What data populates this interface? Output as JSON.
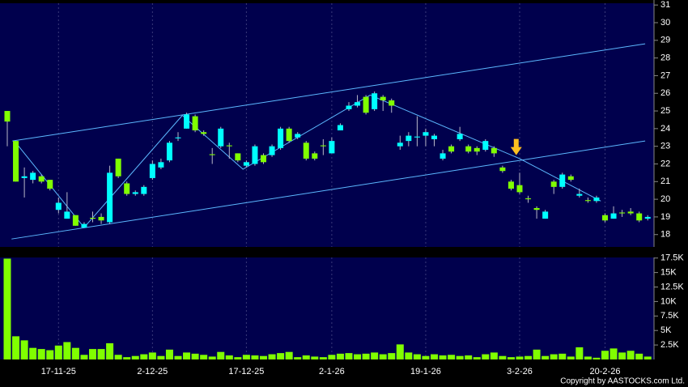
{
  "chart_data": [
    {
      "type": "candlestick",
      "categories": [
        null,
        null,
        null,
        null,
        null,
        null,
        "17-11-25",
        null,
        null,
        null,
        null,
        null,
        null,
        null,
        null,
        null,
        null,
        "2-12-25",
        null,
        null,
        null,
        null,
        null,
        null,
        null,
        null,
        null,
        null,
        "17-12-25",
        null,
        null,
        null,
        null,
        null,
        null,
        null,
        null,
        null,
        "2-1-26",
        null,
        null,
        null,
        null,
        null,
        null,
        null,
        null,
        null,
        null,
        "19-1-26",
        null,
        null,
        null,
        null,
        null,
        null,
        null,
        null,
        null,
        null,
        "3-2-26",
        null,
        null,
        null,
        null,
        null,
        null,
        null,
        null,
        null,
        "20-2-26",
        null,
        null,
        null,
        null,
        null
      ],
      "open": [
        24.4,
        21.0,
        21.3,
        21.5,
        21.0,
        20.6,
        19.8,
        19.3,
        18.5,
        18.6,
        18.9,
        18.8,
        21.5,
        21.3,
        20.3,
        20.4,
        20.7,
        22.0,
        22.1,
        23.2,
        23.5,
        24.8,
        23.9,
        23.7,
        22.5,
        24.0,
        23.0,
        22.2,
        22.1,
        23.0,
        22.1,
        23.0,
        24.0,
        23.3,
        23.7,
        22.3,
        22.3,
        23.0,
        23.3,
        24.2,
        25.3,
        25.5,
        24.9,
        26.0,
        25.6,
        25.3,
        23.2,
        23.6,
        23.55,
        23.8,
        23.6,
        22.6,
        22.7,
        23.7,
        22.7,
        22.7,
        23.3,
        22.6,
        21.6,
        20.6,
        20.4,
        20.0,
        19.4,
        19.3,
        20.7,
        21.4,
        21.1,
        20.3,
        19.9,
        20.1,
        18.8,
        19.2,
        19.2,
        19.2,
        18.8,
        19.0
      ],
      "high": [
        25.0,
        23.3,
        21.8,
        21.6,
        21.4,
        21.1,
        20.1,
        20.4,
        19.1,
        18.7,
        19.3,
        19.2,
        21.9,
        22.3,
        21.0,
        20.5,
        20.8,
        22.2,
        22.3,
        23.3,
        23.8,
        24.9,
        24.8,
        23.9,
        22.9,
        24.1,
        23.2,
        22.6,
        22.2,
        23.1,
        22.6,
        23.1,
        24.1,
        24.1,
        23.8,
        23.3,
        22.7,
        23.4,
        23.5,
        24.3,
        25.5,
        25.9,
        25.9,
        26.1,
        25.9,
        25.7,
        23.6,
        23.8,
        24.7,
        24.0,
        23.7,
        22.8,
        23.1,
        24.1,
        23.1,
        23.0,
        23.4,
        23.0,
        21.9,
        21.1,
        21.5,
        20.2,
        19.6,
        19.4,
        21.1,
        21.5,
        21.4,
        20.6,
        20.1,
        20.2,
        19.2,
        19.6,
        19.4,
        19.5,
        19.3,
        19.1
      ],
      "low": [
        23.0,
        21.0,
        20.1,
        20.9,
        20.9,
        20.5,
        19.2,
        18.9,
        18.5,
        18.4,
        18.7,
        18.6,
        18.6,
        21.2,
        20.2,
        20.2,
        20.2,
        21.1,
        21.7,
        22.1,
        23.3,
        24.0,
        23.8,
        23.6,
        22.0,
        22.9,
        22.3,
        22.1,
        21.8,
        21.9,
        22.0,
        22.4,
        22.8,
        23.2,
        23.4,
        22.2,
        22.2,
        22.5,
        22.6,
        23.9,
        25.0,
        25.2,
        24.8,
        25.0,
        25.0,
        24.9,
        22.8,
        23.0,
        23.0,
        23.0,
        23.0,
        22.2,
        22.6,
        23.3,
        22.6,
        22.5,
        22.7,
        22.4,
        21.5,
        20.5,
        20.3,
        19.8,
        18.9,
        18.9,
        20.3,
        20.6,
        21.0,
        20.1,
        19.8,
        19.8,
        18.7,
        18.9,
        19.0,
        19.1,
        18.7,
        18.8
      ],
      "close": [
        25.0,
        23.3,
        21.2,
        21.1,
        21.3,
        21.1,
        19.4,
        18.9,
        19.1,
        18.4,
        18.95,
        19.0,
        18.7,
        22.3,
        20.9,
        20.3,
        20.3,
        21.2,
        21.8,
        22.2,
        23.45,
        24.0,
        24.7,
        23.8,
        22.55,
        23.0,
        23.05,
        22.6,
        21.9,
        22.0,
        22.5,
        22.5,
        22.9,
        24.0,
        23.5,
        23.2,
        22.6,
        23.05,
        22.6,
        23.9,
        25.1,
        25.3,
        25.8,
        25.1,
        25.8,
        25.6,
        23.0,
        23.3,
        23.5,
        23.6,
        23.4,
        22.3,
        23.0,
        23.4,
        23.0,
        22.9,
        22.8,
        22.9,
        21.8,
        21.0,
        20.8,
        20.05,
        19.5,
        18.9,
        21.0,
        20.7,
        21.3,
        20.2,
        19.95,
        19.9,
        19.1,
        18.9,
        19.25,
        19.3,
        19.2,
        18.9
      ],
      "up_color": "#80ff00",
      "down_color": "#00ffff",
      "wick_color": "#b8b8c8",
      "ylim": [
        17.3,
        31.1
      ],
      "yticks": [
        18,
        19,
        20,
        21,
        22,
        23,
        24,
        25,
        26,
        27,
        28,
        29,
        30,
        31
      ],
      "x_grid": true,
      "trend_lines": [
        {
          "color": "#5cb8ff",
          "points": [
            [
              0.6,
              23.3
            ],
            [
              74.7,
              28.8
            ]
          ]
        },
        {
          "color": "#5cb8ff",
          "points": [
            [
              0.5,
              17.75
            ],
            [
              74.7,
              23.3
            ]
          ]
        },
        {
          "color": "#5cb8ff",
          "points": [
            [
              1,
              23.2
            ],
            [
              9,
              18.4
            ],
            [
              20.5,
              24.75
            ],
            [
              27.6,
              21.7
            ],
            [
              42.5,
              25.9
            ],
            [
              60,
              22.3
            ],
            [
              69.5,
              19.9
            ]
          ]
        }
      ],
      "arrow": {
        "x": 59.6,
        "y": 22.5,
        "color": "#ffc020"
      }
    },
    {
      "type": "bar",
      "values": [
        17400,
        4000,
        3300,
        2000,
        1800,
        1600,
        2400,
        3000,
        2000,
        800,
        1800,
        1800,
        2800,
        800,
        400,
        600,
        900,
        1200,
        600,
        1700,
        600,
        1200,
        1000,
        800,
        500,
        1300,
        700,
        400,
        800,
        700,
        600,
        900,
        1100,
        1300,
        400,
        700,
        500,
        400,
        800,
        1000,
        1100,
        900,
        1000,
        1200,
        900,
        1100,
        2600,
        1200,
        900,
        600,
        900,
        700,
        800,
        600,
        700,
        400,
        900,
        1200,
        600,
        400,
        500,
        600,
        1700,
        600,
        900,
        1000,
        500,
        2100,
        500,
        300,
        1500,
        1900,
        1200,
        1500,
        1000,
        500
      ],
      "color": "#80ff00",
      "ylim": [
        0,
        17600
      ],
      "yticks": [
        {
          "value": 2500,
          "label": "2.5K"
        },
        {
          "value": 5000,
          "label": "5K"
        },
        {
          "value": 7500,
          "label": "7.5K"
        },
        {
          "value": 10000,
          "label": "10K"
        },
        {
          "value": 12500,
          "label": "12.5K"
        },
        {
          "value": 15000,
          "label": "15K"
        },
        {
          "value": 17500,
          "label": "17.5K"
        }
      ]
    }
  ],
  "copyright": "Copyright by AASTOCKS.com Ltd."
}
